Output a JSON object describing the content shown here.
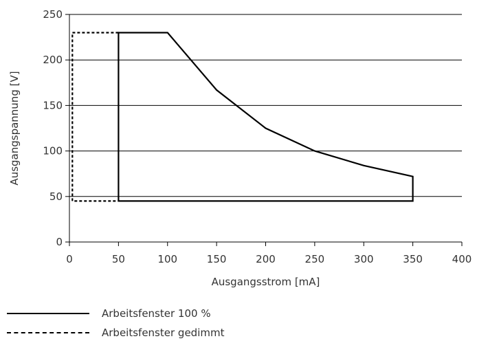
{
  "chart_data": {
    "type": "line",
    "title": "",
    "xlabel": "Ausgangsstrom [mA]",
    "ylabel": "Ausgangspannung [V]",
    "xlim": [
      0,
      400
    ],
    "ylim": [
      0,
      250
    ],
    "xticks": [
      0,
      50,
      100,
      150,
      200,
      250,
      300,
      350,
      400
    ],
    "yticks": [
      0,
      50,
      100,
      150,
      200,
      250
    ],
    "grid": "horizontal",
    "legend_position": "bottom-left",
    "series": [
      {
        "name": "Arbeitsfenster 100 %",
        "style": "solid",
        "color": "#000000",
        "x": [
          50,
          50,
          100,
          150,
          200,
          250,
          300,
          350,
          350,
          50
        ],
        "y": [
          45,
          230,
          230,
          167,
          125,
          100,
          84,
          72,
          45,
          45
        ]
      },
      {
        "name": "Arbeitsfenster gedimmt",
        "style": "dashed",
        "color": "#000000",
        "x": [
          50,
          3,
          3,
          50
        ],
        "y": [
          230,
          230,
          45,
          45
        ]
      }
    ]
  }
}
